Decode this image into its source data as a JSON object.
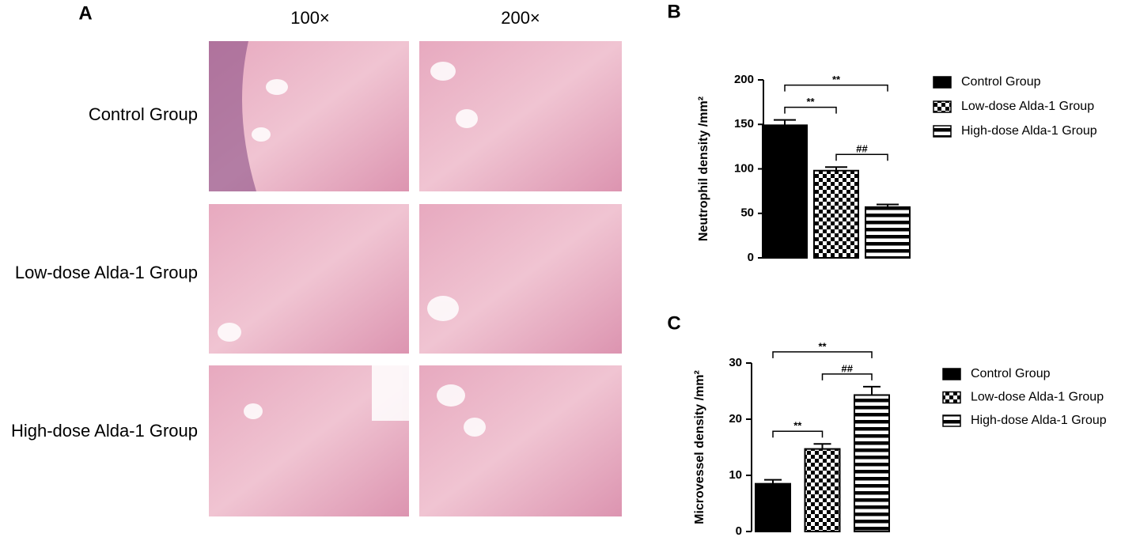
{
  "panel_a": {
    "letter": "A",
    "columns": [
      "100×",
      "200×"
    ],
    "rows": [
      "Control Group",
      "Low-dose Alda-1 Group",
      "High-dose Alda-1 Group"
    ]
  },
  "chart_data": [
    {
      "type": "bar",
      "letter": "B",
      "y_label": "Neutrophil density /mm²",
      "ylim": [
        0,
        200
      ],
      "yticks": [
        0,
        50,
        100,
        150,
        200
      ],
      "series": [
        {
          "name": "Control Group",
          "pattern": "solid",
          "color": "#000000",
          "values": [
            149
          ],
          "errors": [
            6
          ]
        },
        {
          "name": "Low-dose Alda-1 Group",
          "pattern": "checker",
          "color": "#000000",
          "values": [
            98
          ],
          "errors": [
            4
          ]
        },
        {
          "name": "High-dose Alda-1 Group",
          "pattern": "stripes",
          "color": "#000000",
          "values": [
            57
          ],
          "errors": [
            3
          ]
        }
      ],
      "annotations": [
        {
          "label": "**",
          "between": [
            0,
            2
          ]
        },
        {
          "label": "**",
          "between": [
            0,
            1
          ]
        },
        {
          "label": "##",
          "between": [
            1,
            2
          ]
        }
      ]
    },
    {
      "type": "bar",
      "letter": "C",
      "y_label": "Microvessel density /mm²",
      "ylim": [
        0,
        30
      ],
      "yticks": [
        0,
        10,
        20,
        30
      ],
      "series": [
        {
          "name": "Control Group",
          "pattern": "solid",
          "color": "#000000",
          "values": [
            8.5
          ],
          "errors": [
            0.7
          ]
        },
        {
          "name": "Low-dose Alda-1 Group",
          "pattern": "checker",
          "color": "#000000",
          "values": [
            14.7
          ],
          "errors": [
            0.9
          ]
        },
        {
          "name": "High-dose Alda-1 Group",
          "pattern": "stripes",
          "color": "#000000",
          "values": [
            24.3
          ],
          "errors": [
            1.5
          ]
        }
      ],
      "annotations": [
        {
          "label": "**",
          "between": [
            0,
            2
          ]
        },
        {
          "label": "##",
          "between": [
            1,
            2
          ]
        },
        {
          "label": "**",
          "between": [
            0,
            1
          ]
        }
      ]
    }
  ]
}
